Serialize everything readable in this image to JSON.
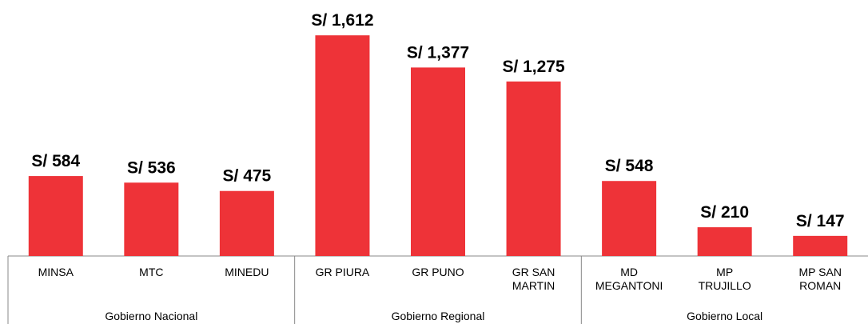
{
  "chart_data": {
    "type": "bar",
    "color": "#ee3338",
    "ylim": [
      0,
      1800
    ],
    "groups": [
      {
        "name": "Gobierno Nacional",
        "categories": [
          "MINSA",
          "MTC",
          "MINEDU"
        ],
        "values": [
          584,
          536,
          475
        ],
        "value_labels": [
          "S/ 584",
          "S/ 536",
          "S/ 475"
        ]
      },
      {
        "name": "Gobierno Regional",
        "categories": [
          "GR PIURA",
          "GR PUNO",
          "GR SAN MARTIN"
        ],
        "values": [
          1612,
          1377,
          1275
        ],
        "value_labels": [
          "S/ 1,612",
          "S/ 1,377",
          "S/ 1,275"
        ]
      },
      {
        "name": "Gobierno Local",
        "categories": [
          "MD MEGANTONI",
          "MP TRUJILLO",
          "MP SAN ROMAN"
        ],
        "values": [
          548,
          210,
          147
        ],
        "value_labels": [
          "S/ 548",
          "S/ 210",
          "S/ 147"
        ]
      }
    ]
  }
}
